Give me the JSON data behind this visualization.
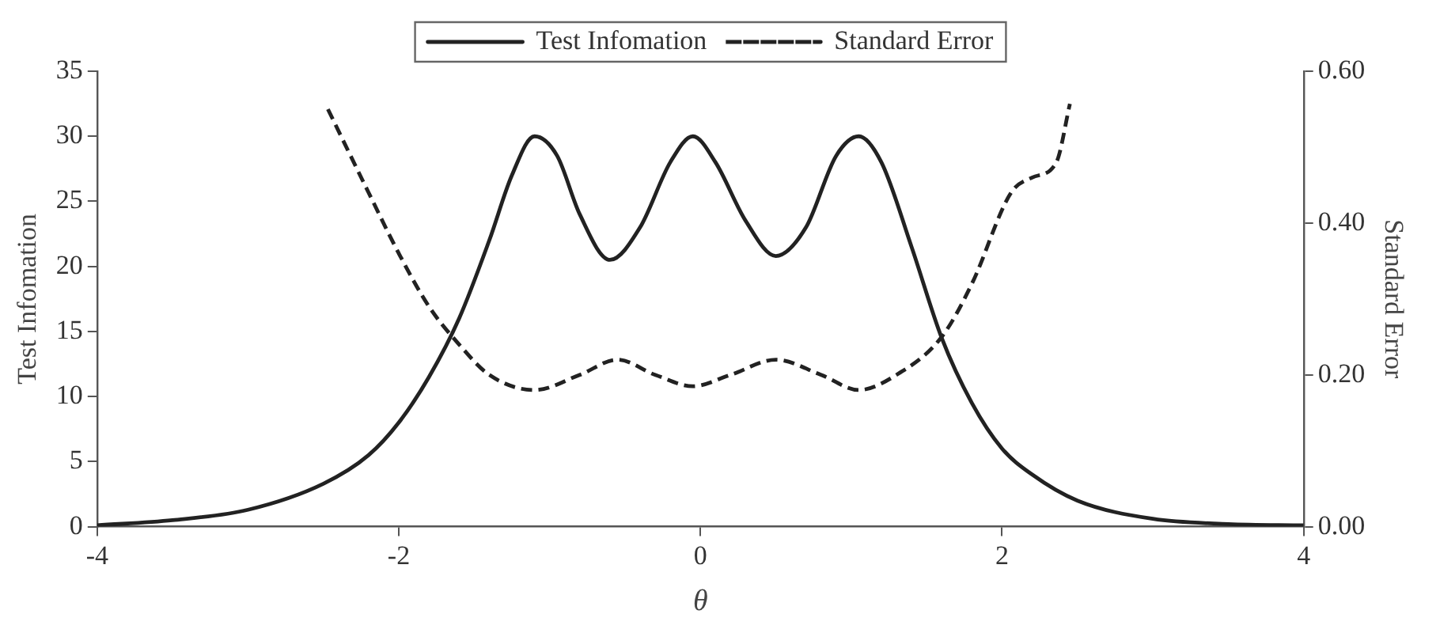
{
  "chart_data": {
    "type": "line",
    "xlabel": "θ",
    "ylabel": "Test Infomation",
    "y2label": "Standard Error",
    "xlim": [
      -4,
      4
    ],
    "xticks": [
      -4,
      -2,
      0,
      2,
      4
    ],
    "ylim": [
      0,
      35
    ],
    "yticks": [
      0,
      5,
      10,
      15,
      20,
      25,
      30,
      35
    ],
    "y2lim": [
      0,
      0.6
    ],
    "y2ticks": [
      {
        "value": 0,
        "label": "0.00"
      },
      {
        "value": 0.2,
        "label": "0.20"
      },
      {
        "value": 0.4,
        "label": "0.40"
      },
      {
        "value": 0.6,
        "label": "0.60"
      }
    ],
    "grid": false,
    "legend": "top",
    "marker": "none",
    "series": [
      {
        "name": "Test Infomation",
        "color": "#222222",
        "line_style": "solid",
        "x": [
          -4,
          -3.5,
          -3,
          -2.5,
          -2.2,
          -2,
          -1.8,
          -1.6,
          -1.4,
          -1.25,
          -1.1,
          -0.95,
          -0.8,
          -0.6,
          -0.4,
          -0.2,
          -0.05,
          0.1,
          0.3,
          0.5,
          0.7,
          0.9,
          1.05,
          1.2,
          1.4,
          1.6,
          1.8,
          2,
          2.2,
          2.5,
          3,
          3.5,
          4
        ],
        "values": [
          0.1,
          0.5,
          1.3,
          3.3,
          5.5,
          8,
          11.5,
          16,
          22,
          27,
          30,
          28.5,
          24,
          20.5,
          23,
          28,
          30,
          28,
          23.5,
          20.8,
          23,
          28.5,
          30,
          28,
          21.5,
          14.5,
          9.5,
          6,
          4,
          2,
          0.6,
          0.2,
          0.1
        ]
      },
      {
        "name": "Standard Error",
        "color": "#222222",
        "line_style": "dashed",
        "axis": "y2",
        "x": [
          -2.47,
          -2.2,
          -2,
          -1.8,
          -1.6,
          -1.4,
          -1.1,
          -0.8,
          -0.55,
          -0.3,
          -0.05,
          0.2,
          0.5,
          0.8,
          1.05,
          1.3,
          1.6,
          1.8,
          2.06,
          2.2,
          2.36,
          2.45
        ],
        "values": [
          0.55,
          0.44,
          0.36,
          0.29,
          0.24,
          0.2,
          0.18,
          0.2,
          0.22,
          0.2,
          0.185,
          0.2,
          0.22,
          0.2,
          0.18,
          0.2,
          0.25,
          0.32,
          0.44,
          0.46,
          0.48,
          0.557
        ]
      }
    ]
  }
}
